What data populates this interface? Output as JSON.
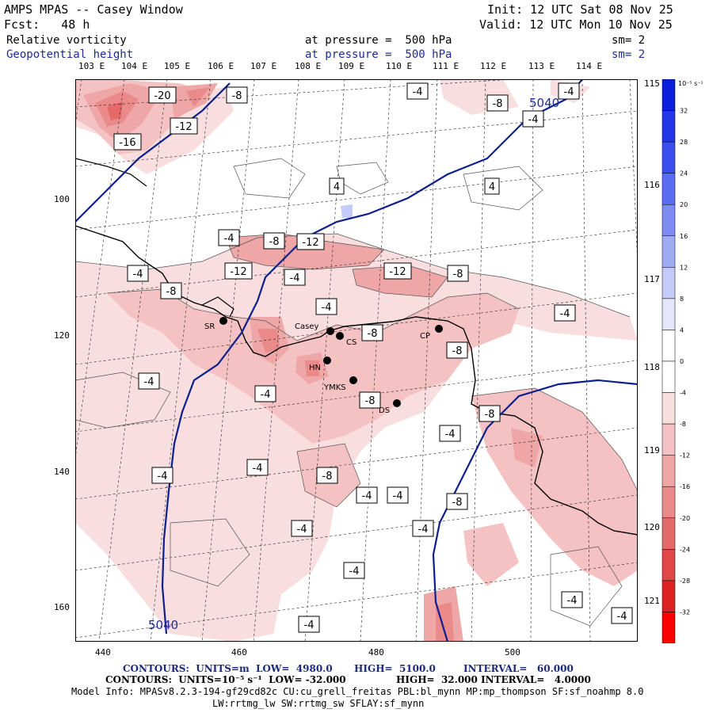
{
  "header": {
    "title": "AMPS MPAS -- Casey Window",
    "fcst": "Fcst:   48 h",
    "init": "Init: 12 UTC Sat 08 Nov 25",
    "valid": "Valid: 12 UTC Mon 10 Nov 25",
    "field1_name": "Relative vorticity",
    "field1_level": "at pressure =  500 hPa",
    "field1_sm": "sm= 2",
    "field2_name": "Geopotential height",
    "field2_level": "at pressure =  500 hPa",
    "field2_sm": "sm= 2"
  },
  "axes": {
    "top_lon_labels": [
      "103 E",
      "104 E",
      "105 E",
      "106 E",
      "107 E",
      "108 E",
      "109 E",
      "110 E",
      "111 E",
      "112 E",
      "113 E",
      "114 E"
    ],
    "right_lon_labels": [
      "115 E",
      "116 E",
      "117 E",
      "118 E",
      "119 E",
      "120 E",
      "121 E"
    ],
    "x_ticks": [
      "440",
      "460",
      "480",
      "500"
    ],
    "y_ticks": [
      "100",
      "120",
      "140",
      "160"
    ]
  },
  "colorbar": {
    "units": "10⁻⁵ s⁻¹",
    "labels": [
      "32",
      "28",
      "24",
      "20",
      "16",
      "12",
      "8",
      "4",
      "0",
      "-4",
      "-8",
      "-12",
      "-16",
      "-20",
      "-24",
      "-28",
      "-32"
    ],
    "colors": [
      "#0a1fdc",
      "#2236e8",
      "#3a4ef0",
      "#5a6cf2",
      "#7e8cf4",
      "#a0abf6",
      "#c4cbf8",
      "#e4e7fb",
      "#ffffff",
      "#ffffff",
      "#f8dede",
      "#f4c2c2",
      "#efa6a6",
      "#ea8a8a",
      "#e46a6a",
      "#e04848",
      "#dc2222",
      "#ff0000"
    ]
  },
  "stations": [
    {
      "id": "SR",
      "label": "SR"
    },
    {
      "id": "Casey",
      "label": "Casey"
    },
    {
      "id": "CS",
      "label": "CS"
    },
    {
      "id": "HN",
      "label": "HN"
    },
    {
      "id": "YMKS",
      "label": "YMKS"
    },
    {
      "id": "DS",
      "label": "DS"
    },
    {
      "id": "CP",
      "label": "CP"
    }
  ],
  "height_labels": [
    "5040",
    "5040"
  ],
  "vorticity_labels": [
    "-20",
    "-8",
    "-12",
    "-16",
    "-4",
    "-8",
    "-4",
    "-4",
    "4",
    "4",
    "-4",
    "-8",
    "-12",
    "-4",
    "-12",
    "-4",
    "-12",
    "-8",
    "-8",
    "-4",
    "-4",
    "-8",
    "-8",
    "-4",
    "-4",
    "-8",
    "-8",
    "-4",
    "-8",
    "-4",
    "-4",
    "-8",
    "-4",
    "-4",
    "-4",
    "-4",
    "-4",
    "-4",
    "-4",
    "-4"
  ],
  "footer": {
    "line1_a": "CONTOURS:  UNITS=m  LOW=  4980.0",
    "line1_b": "HIGH=  5100.0",
    "line1_c": "INTERVAL=   60.000",
    "line2_a": "CONTOURS:  UNITS=10⁻⁵ s⁻¹  LOW= -32.000",
    "line2_b": "HIGH=  32.000",
    "line2_c": "INTERVAL=   4.0000",
    "line3": "Model Info: MPASv8.2.3-194-gf29cd82c CU:cu_grell_freitas PBL:bl_mynn MP:mp_thompson SF:sf_noahmp 8.0",
    "line4": "LW:rrtmg_lw SW:rrtmg_sw SFLAY:sf_mynn"
  }
}
